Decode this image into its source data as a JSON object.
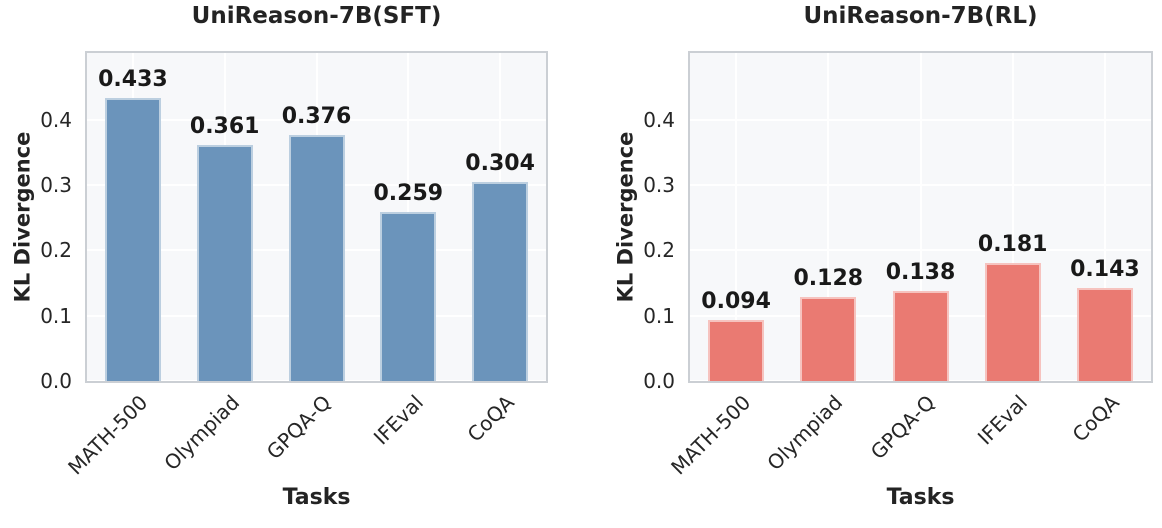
{
  "chart_data": [
    {
      "type": "bar",
      "title": "UniReason-7B(SFT)",
      "xlabel": "Tasks",
      "ylabel": "KL Divergence",
      "categories": [
        "MATH-500",
        "Olympiad",
        "GPQA-Q",
        "IFEval",
        "CoQA"
      ],
      "values": [
        0.433,
        0.361,
        0.376,
        0.259,
        0.304
      ],
      "bar_labels": [
        "0.433",
        "0.361",
        "0.376",
        "0.259",
        "0.304"
      ],
      "bar_color": "#6b94bb",
      "ylim": [
        0,
        0.502
      ],
      "yticks": [
        0,
        0.1,
        0.2,
        0.3,
        0.4
      ],
      "ytick_labels": [
        "0.0",
        "0.1",
        "0.2",
        "0.3",
        "0.4"
      ],
      "grid": true,
      "legend": "none"
    },
    {
      "type": "bar",
      "title": "UniReason-7B(RL)",
      "xlabel": "Tasks",
      "ylabel": "KL Divergence",
      "categories": [
        "MATH-500",
        "Olympiad",
        "GPQA-Q",
        "IFEval",
        "CoQA"
      ],
      "values": [
        0.094,
        0.128,
        0.138,
        0.181,
        0.143
      ],
      "bar_labels": [
        "0.094",
        "0.128",
        "0.138",
        "0.181",
        "0.143"
      ],
      "bar_color": "#ea7a72",
      "ylim": [
        0,
        0.502
      ],
      "yticks": [
        0,
        0.1,
        0.2,
        0.3,
        0.4
      ],
      "ytick_labels": [
        "0.0",
        "0.1",
        "0.2",
        "0.3",
        "0.4"
      ],
      "grid": true,
      "legend": "none"
    }
  ]
}
